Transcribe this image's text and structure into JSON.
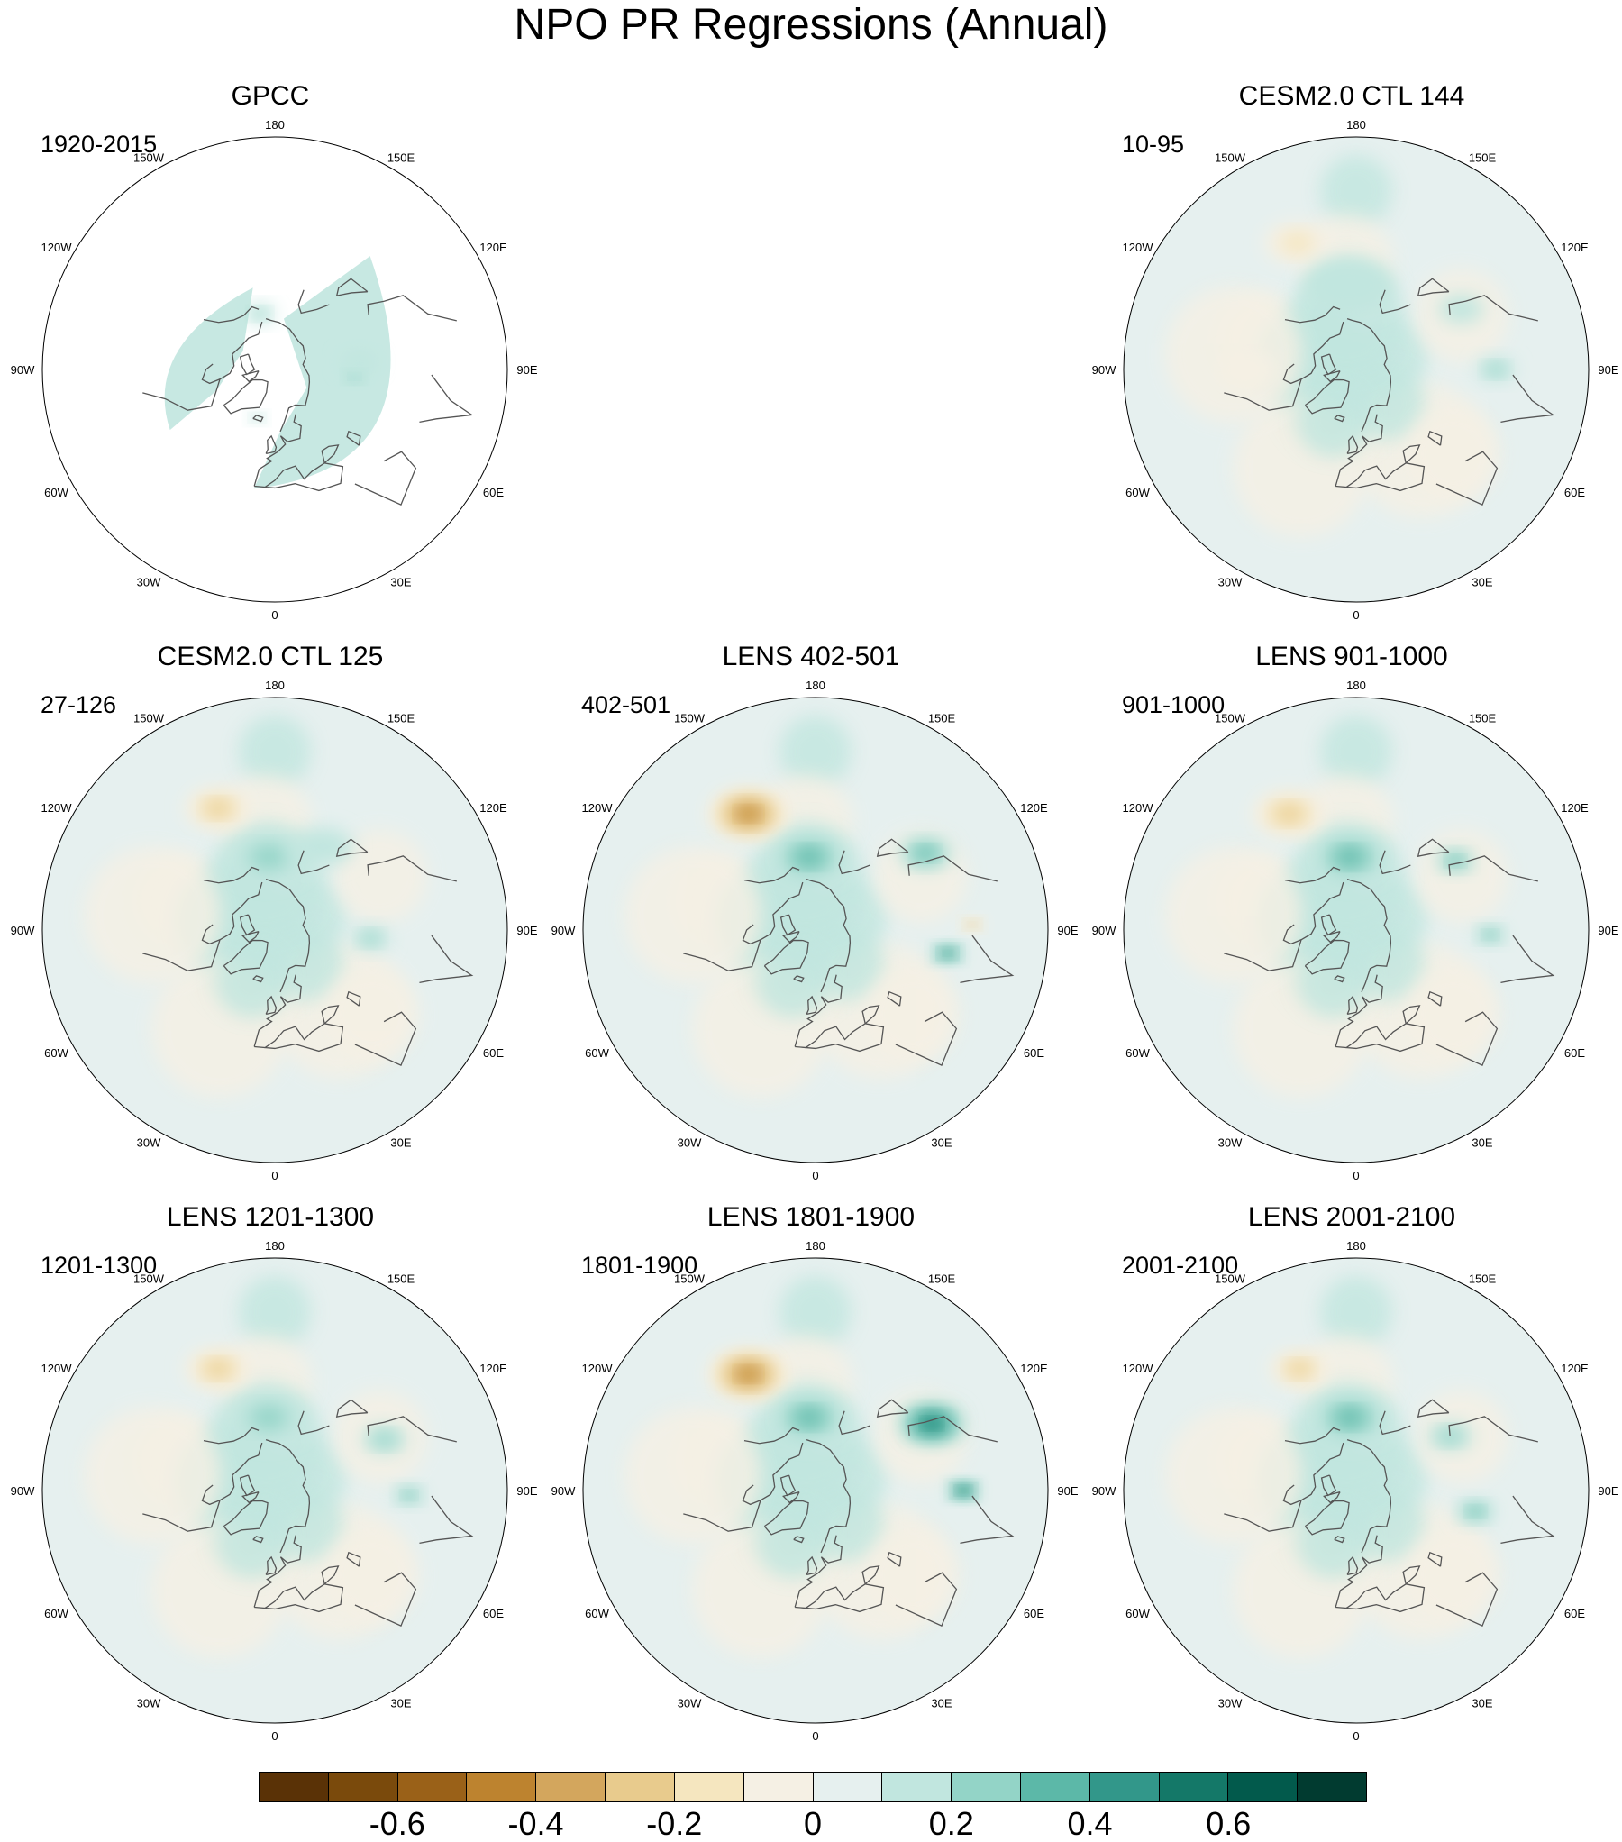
{
  "title": "NPO PR Regressions (Annual)",
  "panels": [
    {
      "title": "GPCC",
      "period": "1920-2015",
      "col": 0,
      "row": 0,
      "land_masked": true,
      "anomalies": [
        {
          "lon": 85,
          "lat": 52,
          "r": 0.03,
          "value": 0.3
        },
        {
          "lon": 95,
          "lat": 50,
          "r": 0.05,
          "value": 0.15
        },
        {
          "lon": -165,
          "lat": 62,
          "r": 0.04,
          "value": 0.2
        },
        {
          "lon": -20,
          "lat": 65,
          "r": 0.02,
          "value": 0.3
        }
      ]
    },
    {
      "title": "CESM2.0 CTL 144",
      "period": "10-95",
      "col": 2,
      "row": 0,
      "land_masked": false,
      "anomalies": [
        {
          "lon": -155,
          "lat": 28,
          "r": 0.09,
          "value": -0.2
        },
        {
          "lon": -175,
          "lat": 50,
          "r": 0.12,
          "value": 0.15
        },
        {
          "lon": 90,
          "lat": 28,
          "r": 0.05,
          "value": 0.2
        },
        {
          "lon": 120,
          "lat": 35,
          "r": 0.06,
          "value": 0.15
        },
        {
          "lon": -90,
          "lat": 40,
          "r": 0.08,
          "value": -0.1
        }
      ]
    },
    {
      "title": "CESM2.0 CTL 125",
      "period": "27-126",
      "col": 0,
      "row": 1,
      "land_masked": false,
      "anomalies": [
        {
          "lon": -155,
          "lat": 30,
          "r": 0.09,
          "value": -0.3
        },
        {
          "lon": -175,
          "lat": 55,
          "r": 0.1,
          "value": 0.2
        },
        {
          "lon": 85,
          "lat": 45,
          "r": 0.05,
          "value": 0.2
        },
        {
          "lon": 150,
          "lat": 45,
          "r": 0.08,
          "value": 0.1
        }
      ]
    },
    {
      "title": "LENS 402-501",
      "period": "402-501",
      "col": 1,
      "row": 1,
      "land_masked": false,
      "anomalies": [
        {
          "lon": -150,
          "lat": 30,
          "r": 0.11,
          "value": -0.45
        },
        {
          "lon": -175,
          "lat": 55,
          "r": 0.1,
          "value": 0.25
        },
        {
          "lon": 125,
          "lat": 30,
          "r": 0.07,
          "value": 0.3
        },
        {
          "lon": 92,
          "lat": 22,
          "r": 0.03,
          "value": -0.4
        },
        {
          "lon": 80,
          "lat": 30,
          "r": 0.04,
          "value": 0.45
        }
      ]
    },
    {
      "title": "LENS 901-1000",
      "period": "901-1000",
      "col": 2,
      "row": 1,
      "land_masked": false,
      "anomalies": [
        {
          "lon": -150,
          "lat": 30,
          "r": 0.1,
          "value": -0.35
        },
        {
          "lon": -175,
          "lat": 55,
          "r": 0.1,
          "value": 0.25
        },
        {
          "lon": 125,
          "lat": 35,
          "r": 0.05,
          "value": 0.25
        },
        {
          "lon": 88,
          "lat": 30,
          "r": 0.04,
          "value": 0.35
        }
      ]
    },
    {
      "title": "LENS 1201-1300",
      "period": "1201-1300",
      "col": 0,
      "row": 2,
      "land_masked": false,
      "anomalies": [
        {
          "lon": -155,
          "lat": 30,
          "r": 0.09,
          "value": -0.25
        },
        {
          "lon": -175,
          "lat": 55,
          "r": 0.1,
          "value": 0.2
        },
        {
          "lon": 88,
          "lat": 30,
          "r": 0.04,
          "value": 0.35
        },
        {
          "lon": 115,
          "lat": 35,
          "r": 0.06,
          "value": 0.2
        }
      ]
    },
    {
      "title": "LENS 1801-1900",
      "period": "1801-1900",
      "col": 1,
      "row": 2,
      "land_masked": false,
      "anomalies": [
        {
          "lon": -150,
          "lat": 30,
          "r": 0.11,
          "value": -0.45
        },
        {
          "lon": -175,
          "lat": 55,
          "r": 0.1,
          "value": 0.3
        },
        {
          "lon": 120,
          "lat": 30,
          "r": 0.09,
          "value": 0.45
        },
        {
          "lon": 90,
          "lat": 25,
          "r": 0.04,
          "value": 0.6
        }
      ]
    },
    {
      "title": "LENS 2001-2100",
      "period": "2001-2100",
      "col": 2,
      "row": 2,
      "land_masked": false,
      "anomalies": [
        {
          "lon": -155,
          "lat": 30,
          "r": 0.08,
          "value": -0.3
        },
        {
          "lon": -175,
          "lat": 55,
          "r": 0.1,
          "value": 0.25
        },
        {
          "lon": 80,
          "lat": 35,
          "r": 0.05,
          "value": 0.3
        },
        {
          "lon": 120,
          "lat": 40,
          "r": 0.06,
          "value": 0.2
        }
      ]
    }
  ],
  "lon_labels": [
    {
      "lon": 180,
      "text": "180"
    },
    {
      "lon": 150,
      "text": "150E"
    },
    {
      "lon": 120,
      "text": "120E"
    },
    {
      "lon": 90,
      "text": "90E"
    },
    {
      "lon": 60,
      "text": "60E"
    },
    {
      "lon": 30,
      "text": "30E"
    },
    {
      "lon": 0,
      "text": "0"
    },
    {
      "lon": -30,
      "text": "30W"
    },
    {
      "lon": -60,
      "text": "60W"
    },
    {
      "lon": -90,
      "text": "90W"
    },
    {
      "lon": -120,
      "text": "120W"
    },
    {
      "lon": -150,
      "text": "150W"
    }
  ],
  "colorbar": {
    "colors": [
      "#5a3206",
      "#7a4a0c",
      "#9a6118",
      "#bd832f",
      "#d3a65d",
      "#e8cb8d",
      "#f5e6bf",
      "#f5f0e4",
      "#e6f0ef",
      "#c1e6df",
      "#93d4c7",
      "#5cb8a8",
      "#32978a",
      "#147868",
      "#025a4c",
      "#013b30"
    ],
    "labels": [
      "-0.6",
      "-0.4",
      "-0.2",
      "0",
      "0.2",
      "0.4",
      "0.6"
    ],
    "label_values": [
      -0.6,
      -0.4,
      -0.2,
      0,
      0.2,
      0.4,
      0.6
    ],
    "min": -0.8,
    "max": 0.8
  }
}
